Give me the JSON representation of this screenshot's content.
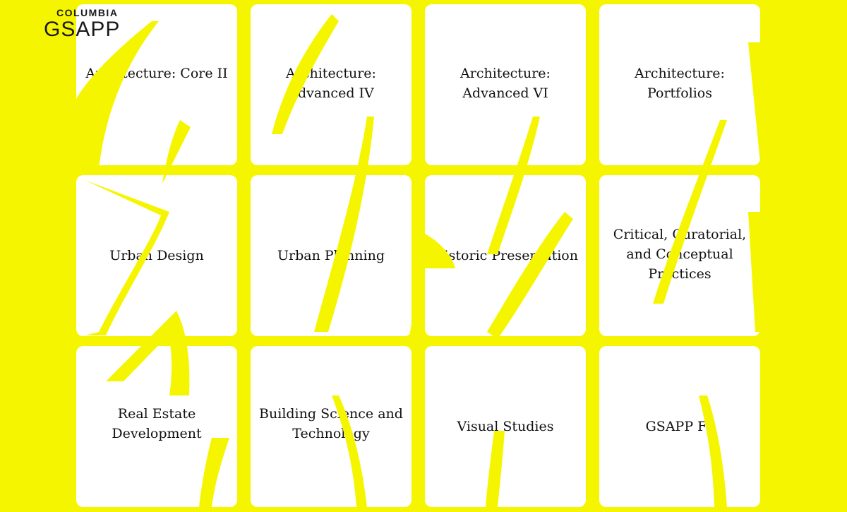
{
  "brand": {
    "line1": "COLUMBIA",
    "line2": "GSAPP"
  },
  "tiles": [
    {
      "label": "Architecture: Core II"
    },
    {
      "label": "Architecture: Advanced IV"
    },
    {
      "label": "Architecture: Advanced VI"
    },
    {
      "label": "Architecture: Portfolios"
    },
    {
      "label": "Urban Design"
    },
    {
      "label": "Urban Planning"
    },
    {
      "label": "Historic Preservation"
    },
    {
      "label": "Critical, Curatorial, and Conceptual Practices"
    },
    {
      "label": "Real Estate Development"
    },
    {
      "label": "Building Science and Technology"
    },
    {
      "label": "Visual Studies"
    },
    {
      "label": "GSAPP Fa"
    }
  ],
  "colors": {
    "background": "#f5f500",
    "tile": "#ffffff",
    "text": "#111111"
  }
}
